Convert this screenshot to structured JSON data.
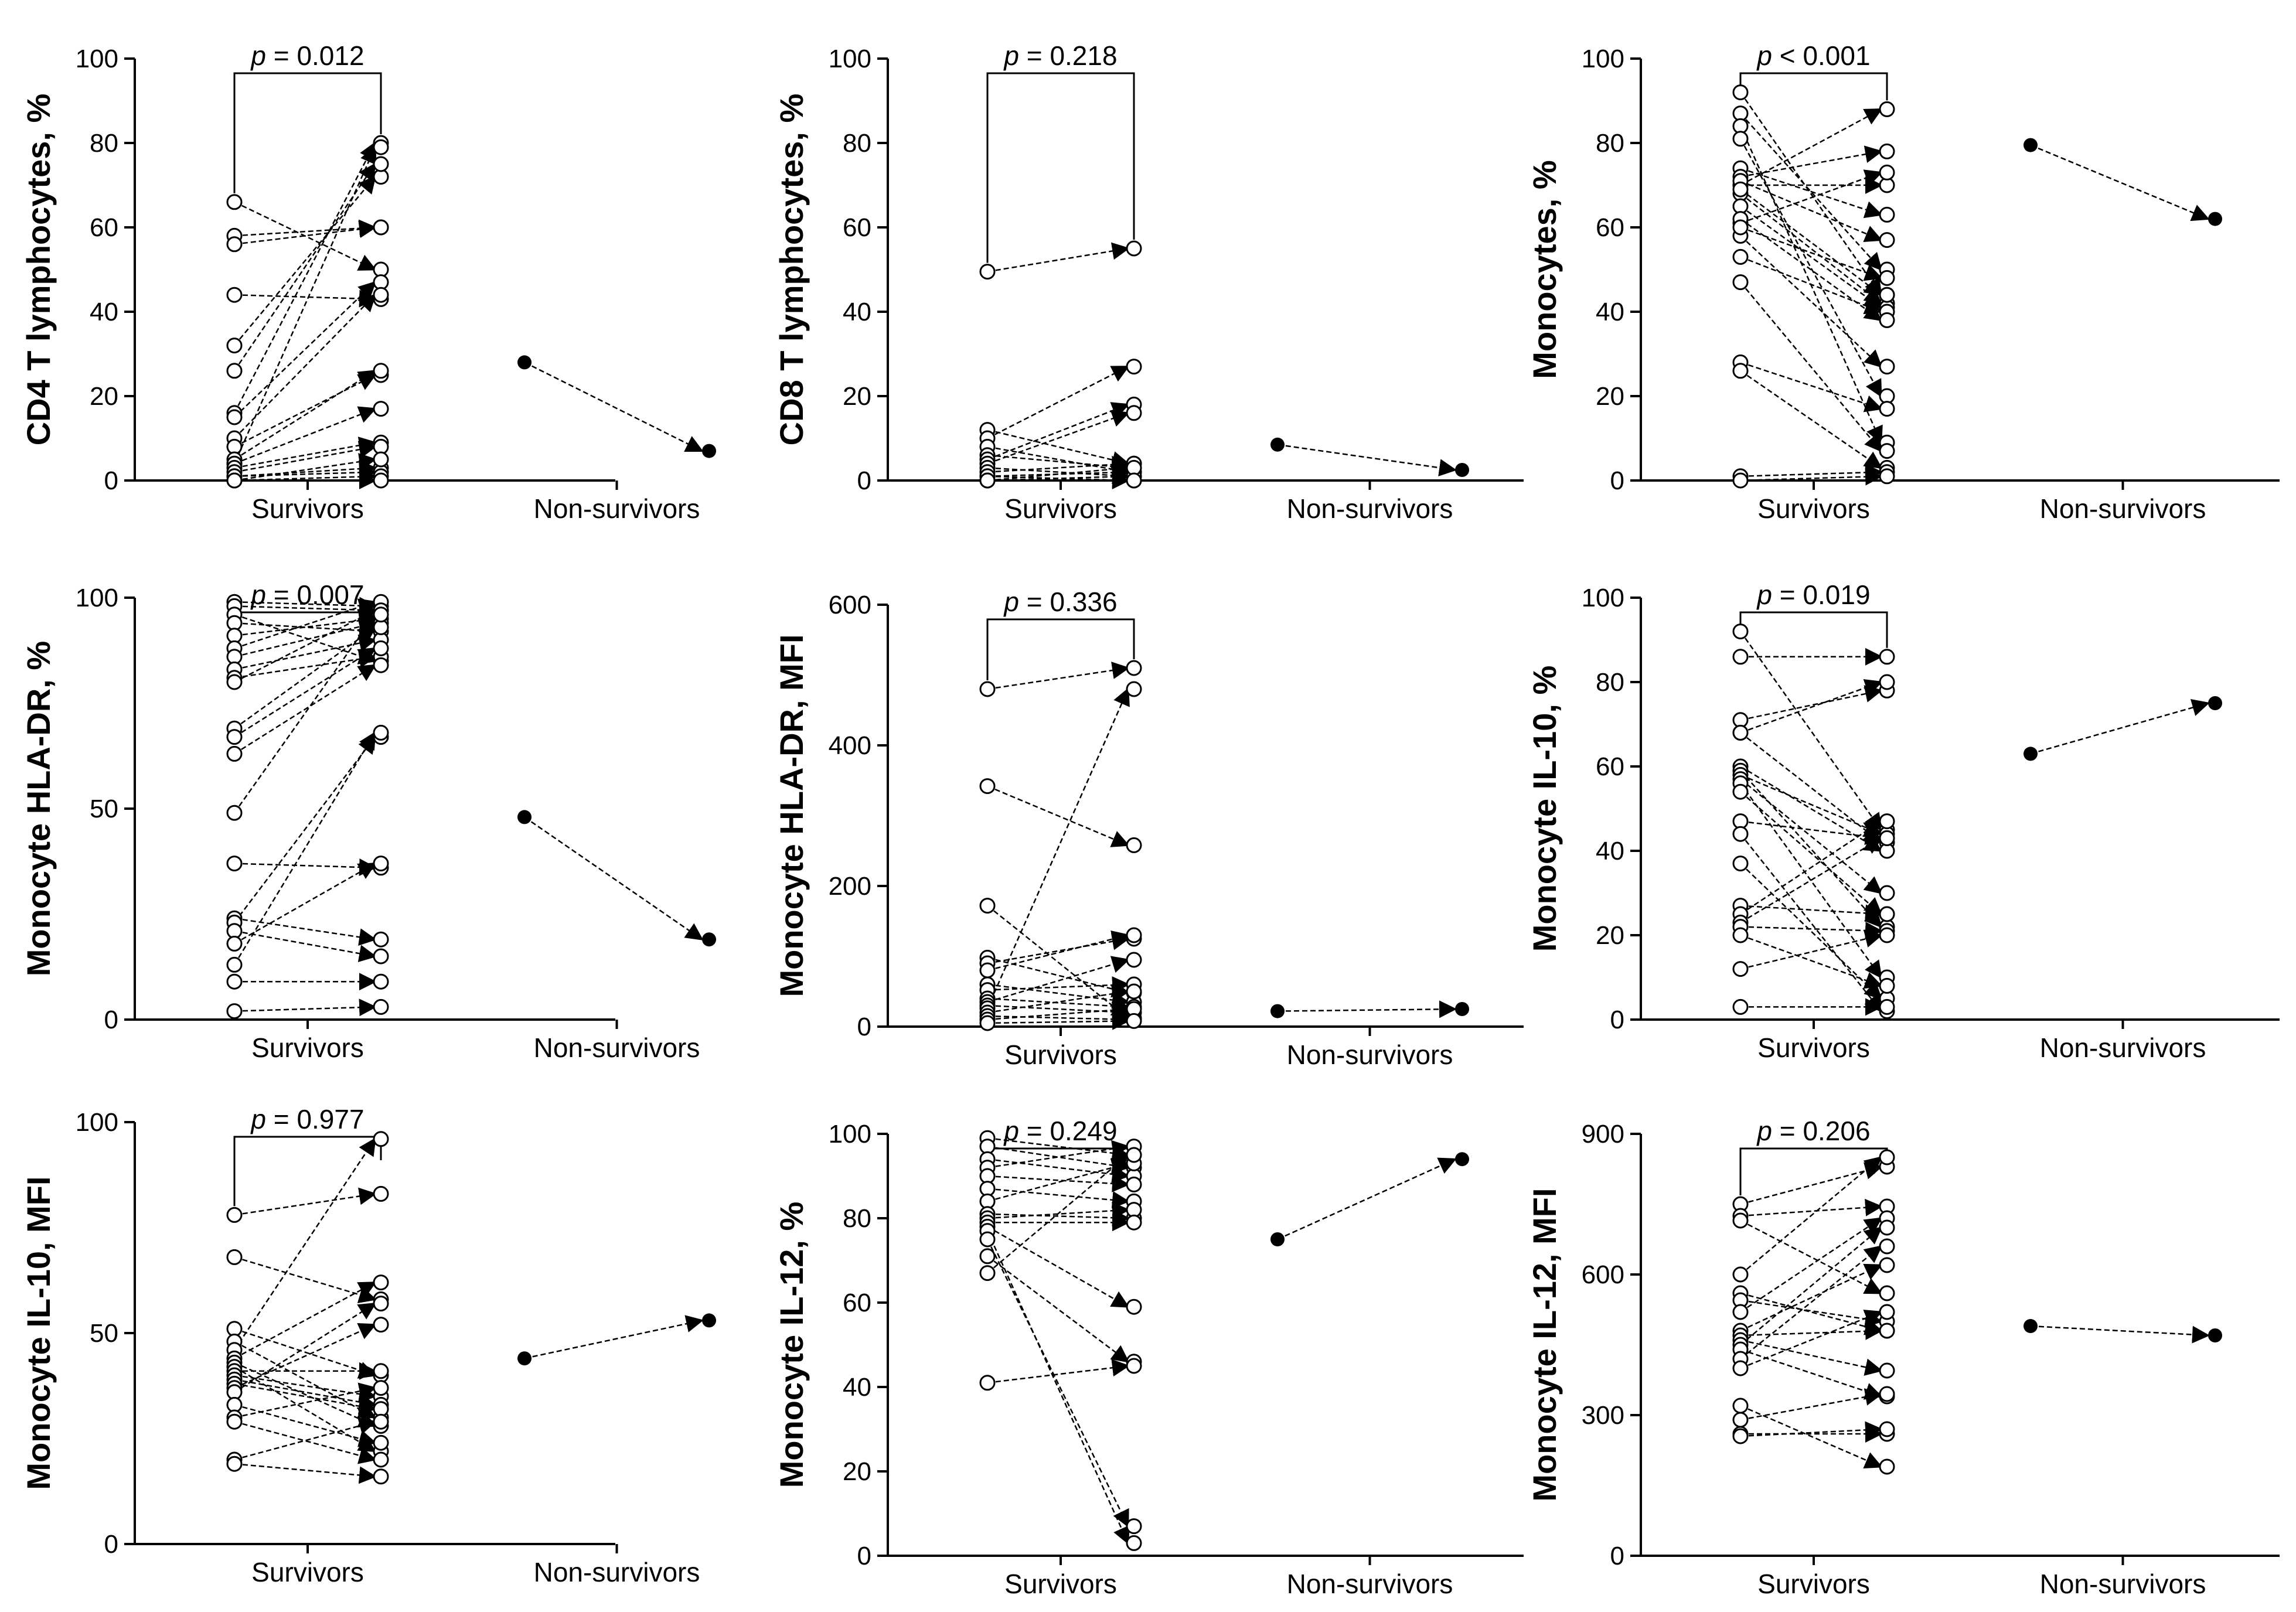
{
  "figure_title": "",
  "chart_data": [
    {
      "type": "paired-scatter",
      "ylabel": "CD4 T lymphocytes, %",
      "ylim": [
        0,
        100
      ],
      "yticks": [
        0,
        20,
        40,
        60,
        80,
        100
      ],
      "categories": [
        "Survivors",
        "Non-survivors"
      ],
      "pvalue": {
        "prefix": "p",
        "text": " = 0.012"
      },
      "survivor_pairs": [
        [
          66,
          50
        ],
        [
          58,
          60
        ],
        [
          56,
          60
        ],
        [
          44,
          43
        ],
        [
          32,
          72
        ],
        [
          26,
          75
        ],
        [
          16,
          80
        ],
        [
          15,
          47
        ],
        [
          10,
          44
        ],
        [
          8,
          25
        ],
        [
          5,
          26
        ],
        [
          4,
          79
        ],
        [
          4,
          17
        ],
        [
          3,
          9
        ],
        [
          2,
          8
        ],
        [
          1,
          3
        ],
        [
          1,
          2
        ],
        [
          0,
          1
        ],
        [
          0,
          5
        ],
        [
          0,
          0
        ]
      ],
      "nonsurvivor_pairs": [
        [
          28,
          7
        ]
      ]
    },
    {
      "type": "paired-scatter",
      "ylabel": "CD8 T lymphocytes, %",
      "ylim": [
        0,
        100
      ],
      "yticks": [
        0,
        20,
        40,
        60,
        80,
        100
      ],
      "categories": [
        "Survivors",
        "Non-survivors"
      ],
      "pvalue": {
        "prefix": "p",
        "text": " = 0.218"
      },
      "survivor_pairs": [
        [
          49.5,
          55
        ],
        [
          12,
          4
        ],
        [
          10,
          27
        ],
        [
          8,
          2
        ],
        [
          6,
          3
        ],
        [
          5,
          18
        ],
        [
          4,
          16
        ],
        [
          3,
          1
        ],
        [
          2,
          4
        ],
        [
          1,
          2
        ],
        [
          1,
          0
        ],
        [
          0,
          1
        ],
        [
          0,
          3
        ],
        [
          0,
          0
        ]
      ],
      "nonsurvivor_pairs": [
        [
          8.5,
          2.5
        ]
      ]
    },
    {
      "type": "paired-scatter",
      "ylabel": "Monocytes, %",
      "ylim": [
        0,
        100
      ],
      "yticks": [
        0,
        20,
        40,
        60,
        80,
        100
      ],
      "categories": [
        "Survivors",
        "Non-survivors"
      ],
      "pvalue": {
        "prefix": "p",
        "text": " < 0.001"
      },
      "survivor_pairs": [
        [
          92,
          44
        ],
        [
          87,
          50
        ],
        [
          84,
          9
        ],
        [
          81,
          20
        ],
        [
          74,
          63
        ],
        [
          72,
          78
        ],
        [
          70,
          70
        ],
        [
          68,
          42
        ],
        [
          65,
          41
        ],
        [
          61,
          73
        ],
        [
          58,
          27
        ],
        [
          53,
          40
        ],
        [
          47,
          7
        ],
        [
          28,
          17
        ],
        [
          26,
          3
        ],
        [
          1,
          2
        ],
        [
          0,
          1
        ],
        [
          70,
          88
        ],
        [
          71,
          57
        ],
        [
          69,
          44
        ],
        [
          62,
          38
        ],
        [
          60,
          48
        ]
      ],
      "nonsurvivor_pairs": [
        [
          79.5,
          62
        ]
      ]
    },
    {
      "type": "paired-scatter",
      "ylabel": "Monocyte HLA-DR, %",
      "ylim": [
        0,
        100
      ],
      "yticks": [
        0,
        50,
        100
      ],
      "categories": [
        "Survivors",
        "Non-survivors"
      ],
      "pvalue": {
        "prefix": "p",
        "text": " = 0.007"
      },
      "survivor_pairs": [
        [
          99,
          98
        ],
        [
          98,
          97
        ],
        [
          96,
          85
        ],
        [
          94,
          92
        ],
        [
          91,
          95
        ],
        [
          88,
          99
        ],
        [
          86,
          94
        ],
        [
          83,
          90
        ],
        [
          81,
          86
        ],
        [
          80,
          97
        ],
        [
          69,
          93
        ],
        [
          67,
          88
        ],
        [
          63,
          84
        ],
        [
          49,
          96
        ],
        [
          37,
          36
        ],
        [
          24,
          19
        ],
        [
          23,
          67
        ],
        [
          21,
          15
        ],
        [
          18,
          37
        ],
        [
          13,
          68
        ],
        [
          9,
          9
        ],
        [
          2,
          3
        ]
      ],
      "nonsurvivor_pairs": [
        [
          48,
          19
        ]
      ]
    },
    {
      "type": "paired-scatter",
      "ylabel": "Monocyte HLA-DR, MFI",
      "ylim": [
        0,
        600
      ],
      "yticks": [
        0,
        200,
        400,
        600
      ],
      "categories": [
        "Survivors",
        "Non-survivors"
      ],
      "pvalue": {
        "prefix": "p",
        "text": " = 0.336"
      },
      "survivor_pairs": [
        [
          480,
          510
        ],
        [
          342,
          258
        ],
        [
          172,
          12
        ],
        [
          98,
          48
        ],
        [
          90,
          125
        ],
        [
          80,
          130
        ],
        [
          60,
          35
        ],
        [
          52,
          60
        ],
        [
          40,
          28
        ],
        [
          35,
          95
        ],
        [
          30,
          20
        ],
        [
          26,
          480
        ],
        [
          20,
          50
        ],
        [
          15,
          10
        ],
        [
          10,
          25
        ],
        [
          5,
          8
        ]
      ],
      "nonsurvivor_pairs": [
        [
          22,
          25
        ]
      ]
    },
    {
      "type": "paired-scatter",
      "ylabel": "Monocyte IL-10, %",
      "ylim": [
        0,
        100
      ],
      "yticks": [
        0,
        20,
        40,
        60,
        80,
        100
      ],
      "categories": [
        "Survivors",
        "Non-survivors"
      ],
      "pvalue": {
        "prefix": "p",
        "text": " = 0.019"
      },
      "survivor_pairs": [
        [
          92,
          45
        ],
        [
          86,
          86
        ],
        [
          71,
          78
        ],
        [
          68,
          80
        ],
        [
          68,
          42
        ],
        [
          60,
          40
        ],
        [
          59,
          22
        ],
        [
          58,
          44
        ],
        [
          57,
          30
        ],
        [
          56,
          10
        ],
        [
          54,
          25
        ],
        [
          47,
          43
        ],
        [
          44,
          2
        ],
        [
          37,
          5
        ],
        [
          27,
          25
        ],
        [
          25,
          47
        ],
        [
          23,
          43
        ],
        [
          22,
          21
        ],
        [
          20,
          8
        ],
        [
          12,
          20
        ],
        [
          3,
          3
        ]
      ],
      "nonsurvivor_pairs": [
        [
          63,
          75
        ]
      ]
    },
    {
      "type": "paired-scatter",
      "ylabel": "Monocyte IL-10, MFI",
      "ylim": [
        0,
        100
      ],
      "yticks": [
        0,
        50,
        100
      ],
      "categories": [
        "Survivors",
        "Non-survivors"
      ],
      "pvalue": {
        "prefix": "p",
        "text": " = 0.977"
      },
      "survivor_pairs": [
        [
          78,
          83
        ],
        [
          68,
          58
        ],
        [
          51,
          40
        ],
        [
          48,
          30
        ],
        [
          46,
          96
        ],
        [
          44,
          62
        ],
        [
          43,
          28
        ],
        [
          42,
          22
        ],
        [
          41,
          41
        ],
        [
          40,
          35
        ],
        [
          39,
          33
        ],
        [
          38,
          32
        ],
        [
          37,
          52
        ],
        [
          36,
          57
        ],
        [
          33,
          24
        ],
        [
          30,
          37
        ],
        [
          29,
          20
        ],
        [
          20,
          29
        ],
        [
          19,
          16
        ]
      ],
      "nonsurvivor_pairs": [
        [
          44,
          53
        ]
      ]
    },
    {
      "type": "paired-scatter",
      "ylabel": "Monocyte IL-12, %",
      "ylim": [
        0,
        100
      ],
      "yticks": [
        0,
        20,
        40,
        60,
        80,
        100
      ],
      "categories": [
        "Survivors",
        "Non-survivors"
      ],
      "pvalue": {
        "prefix": "p",
        "text": " = 0.249"
      },
      "survivor_pairs": [
        [
          99,
          95
        ],
        [
          97,
          92
        ],
        [
          94,
          90
        ],
        [
          92,
          97
        ],
        [
          90,
          88
        ],
        [
          87,
          84
        ],
        [
          84,
          93
        ],
        [
          81,
          80
        ],
        [
          80,
          82
        ],
        [
          79,
          79
        ],
        [
          78,
          59
        ],
        [
          77,
          3
        ],
        [
          75,
          7
        ],
        [
          71,
          46
        ],
        [
          67,
          95
        ],
        [
          41,
          45
        ]
      ],
      "nonsurvivor_pairs": [
        [
          75,
          94
        ]
      ]
    },
    {
      "type": "paired-scatter",
      "ylabel": "Monocyte IL-12, MFI",
      "ylim": [
        0,
        900
      ],
      "yticks": [
        0,
        300,
        600,
        900
      ],
      "categories": [
        "Survivors",
        "Non-survivors"
      ],
      "pvalue": {
        "prefix": "p",
        "text": " = 0.206"
      },
      "survivor_pairs": [
        [
          750,
          830
        ],
        [
          725,
          745
        ],
        [
          715,
          560
        ],
        [
          600,
          850
        ],
        [
          560,
          480
        ],
        [
          545,
          500
        ],
        [
          520,
          720
        ],
        [
          480,
          620
        ],
        [
          470,
          480
        ],
        [
          460,
          395
        ],
        [
          450,
          700
        ],
        [
          440,
          340
        ],
        [
          420,
          660
        ],
        [
          400,
          520
        ],
        [
          320,
          190
        ],
        [
          290,
          345
        ],
        [
          260,
          260
        ],
        [
          255,
          270
        ]
      ],
      "nonsurvivor_pairs": [
        [
          490,
          470
        ]
      ]
    }
  ]
}
